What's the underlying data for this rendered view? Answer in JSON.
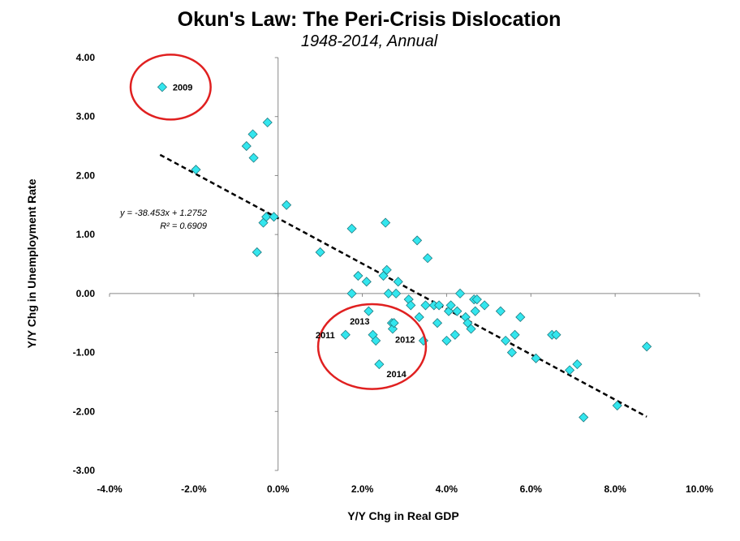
{
  "chart_data": {
    "type": "scatter",
    "title": "Okun's Law:  The Peri-Crisis Dislocation",
    "subtitle": "1948-2014, Annual",
    "xlabel": "Y/Y Chg in Real GDP",
    "ylabel": "Y/Y Chg in Unemployment Rate",
    "xlim": [
      -0.04,
      0.1
    ],
    "ylim": [
      -3.0,
      4.0
    ],
    "x_ticks": [
      -0.04,
      -0.02,
      0.0,
      0.02,
      0.04,
      0.06,
      0.08,
      0.1
    ],
    "x_tick_labels": [
      "-4.0%",
      "-2.0%",
      "0.0%",
      "2.0%",
      "4.0%",
      "6.0%",
      "8.0%",
      "10.0%"
    ],
    "y_ticks": [
      4,
      3,
      2,
      1,
      0,
      -1,
      -2,
      -3
    ],
    "y_tick_labels": [
      "4.00",
      "3.00",
      "2.00",
      "1.00",
      "0.00",
      "-1.00",
      "-2.00",
      "-3.00"
    ],
    "grid": false,
    "marker_color": "#33e6ee",
    "marker_edge_color": "#1f7a80",
    "highlight_color": "#e02020",
    "points": [
      {
        "x": -0.0275,
        "y": 3.5
      },
      {
        "x": -0.0195,
        "y": 2.1
      },
      {
        "x": -0.0075,
        "y": 2.5
      },
      {
        "x": -0.006,
        "y": 2.7
      },
      {
        "x": -0.0058,
        "y": 2.3
      },
      {
        "x": -0.005,
        "y": 0.7
      },
      {
        "x": -0.0025,
        "y": 2.9
      },
      {
        "x": -0.0035,
        "y": 1.2
      },
      {
        "x": -0.0028,
        "y": 1.3
      },
      {
        "x": -0.001,
        "y": 1.3
      },
      {
        "x": 0.002,
        "y": 1.5
      },
      {
        "x": 0.01,
        "y": 0.7
      },
      {
        "x": 0.0175,
        "y": 1.1
      },
      {
        "x": 0.0175,
        "y": 0.0
      },
      {
        "x": 0.019,
        "y": 0.3
      },
      {
        "x": 0.021,
        "y": 0.2
      },
      {
        "x": 0.0215,
        "y": -0.3
      },
      {
        "x": 0.016,
        "y": -0.7
      },
      {
        "x": 0.0225,
        "y": -0.7
      },
      {
        "x": 0.0232,
        "y": -0.8
      },
      {
        "x": 0.024,
        "y": -1.2
      },
      {
        "x": 0.025,
        "y": 0.3
      },
      {
        "x": 0.0255,
        "y": 1.2
      },
      {
        "x": 0.0258,
        "y": 0.4
      },
      {
        "x": 0.0262,
        "y": 0.0
      },
      {
        "x": 0.027,
        "y": -0.5
      },
      {
        "x": 0.0272,
        "y": -0.6
      },
      {
        "x": 0.0275,
        "y": -0.5
      },
      {
        "x": 0.028,
        "y": 0.0
      },
      {
        "x": 0.0285,
        "y": 0.2
      },
      {
        "x": 0.031,
        "y": -0.1
      },
      {
        "x": 0.0315,
        "y": -0.2
      },
      {
        "x": 0.033,
        "y": 0.9
      },
      {
        "x": 0.0335,
        "y": -0.4
      },
      {
        "x": 0.0345,
        "y": -0.8
      },
      {
        "x": 0.035,
        "y": -0.2
      },
      {
        "x": 0.0355,
        "y": 0.6
      },
      {
        "x": 0.037,
        "y": -0.2
      },
      {
        "x": 0.0378,
        "y": -0.5
      },
      {
        "x": 0.0382,
        "y": -0.2
      },
      {
        "x": 0.04,
        "y": -0.8
      },
      {
        "x": 0.0405,
        "y": -0.3
      },
      {
        "x": 0.041,
        "y": -0.2
      },
      {
        "x": 0.042,
        "y": -0.7
      },
      {
        "x": 0.0425,
        "y": -0.3
      },
      {
        "x": 0.0432,
        "y": 0.0
      },
      {
        "x": 0.0445,
        "y": -0.4
      },
      {
        "x": 0.045,
        "y": -0.5
      },
      {
        "x": 0.0458,
        "y": -0.6
      },
      {
        "x": 0.0465,
        "y": -0.1
      },
      {
        "x": 0.0468,
        "y": -0.3
      },
      {
        "x": 0.0472,
        "y": -0.1
      },
      {
        "x": 0.049,
        "y": -0.2
      },
      {
        "x": 0.0528,
        "y": -0.3
      },
      {
        "x": 0.054,
        "y": -0.8
      },
      {
        "x": 0.0555,
        "y": -1.0
      },
      {
        "x": 0.0562,
        "y": -0.7
      },
      {
        "x": 0.0575,
        "y": -0.4
      },
      {
        "x": 0.0612,
        "y": -1.1
      },
      {
        "x": 0.065,
        "y": -0.7
      },
      {
        "x": 0.066,
        "y": -0.7
      },
      {
        "x": 0.0692,
        "y": -1.3
      },
      {
        "x": 0.071,
        "y": -1.2
      },
      {
        "x": 0.0725,
        "y": -2.1
      },
      {
        "x": 0.0805,
        "y": -1.9
      },
      {
        "x": 0.0875,
        "y": -0.9
      }
    ],
    "point_labels": [
      {
        "text": "2009",
        "x": -0.0275,
        "y": 3.5
      },
      {
        "text": "2011",
        "x": 0.016,
        "y": -0.7
      },
      {
        "text": "2013",
        "x": 0.0225,
        "y": -0.7
      },
      {
        "text": "2012",
        "x": 0.0272,
        "y": -0.6
      },
      {
        "text": "2014",
        "x": 0.024,
        "y": -1.2
      }
    ],
    "trendline": {
      "slope": -38.453,
      "intercept": 1.2752,
      "x_range": [
        -0.028,
        0.0875
      ],
      "style": "dashed",
      "equation_text": "y = -38.453x + 1.2752",
      "r2_text": "R² = 0.6909"
    },
    "highlights": [
      {
        "name": "highlight-2009",
        "center": [
          -0.0255,
          3.5
        ],
        "rx_units": 0.0095,
        "ry_units": 0.55
      },
      {
        "name": "highlight-recovery",
        "center": [
          0.0223,
          -0.9
        ],
        "rx_units": 0.0128,
        "ry_units": 0.72
      }
    ]
  }
}
